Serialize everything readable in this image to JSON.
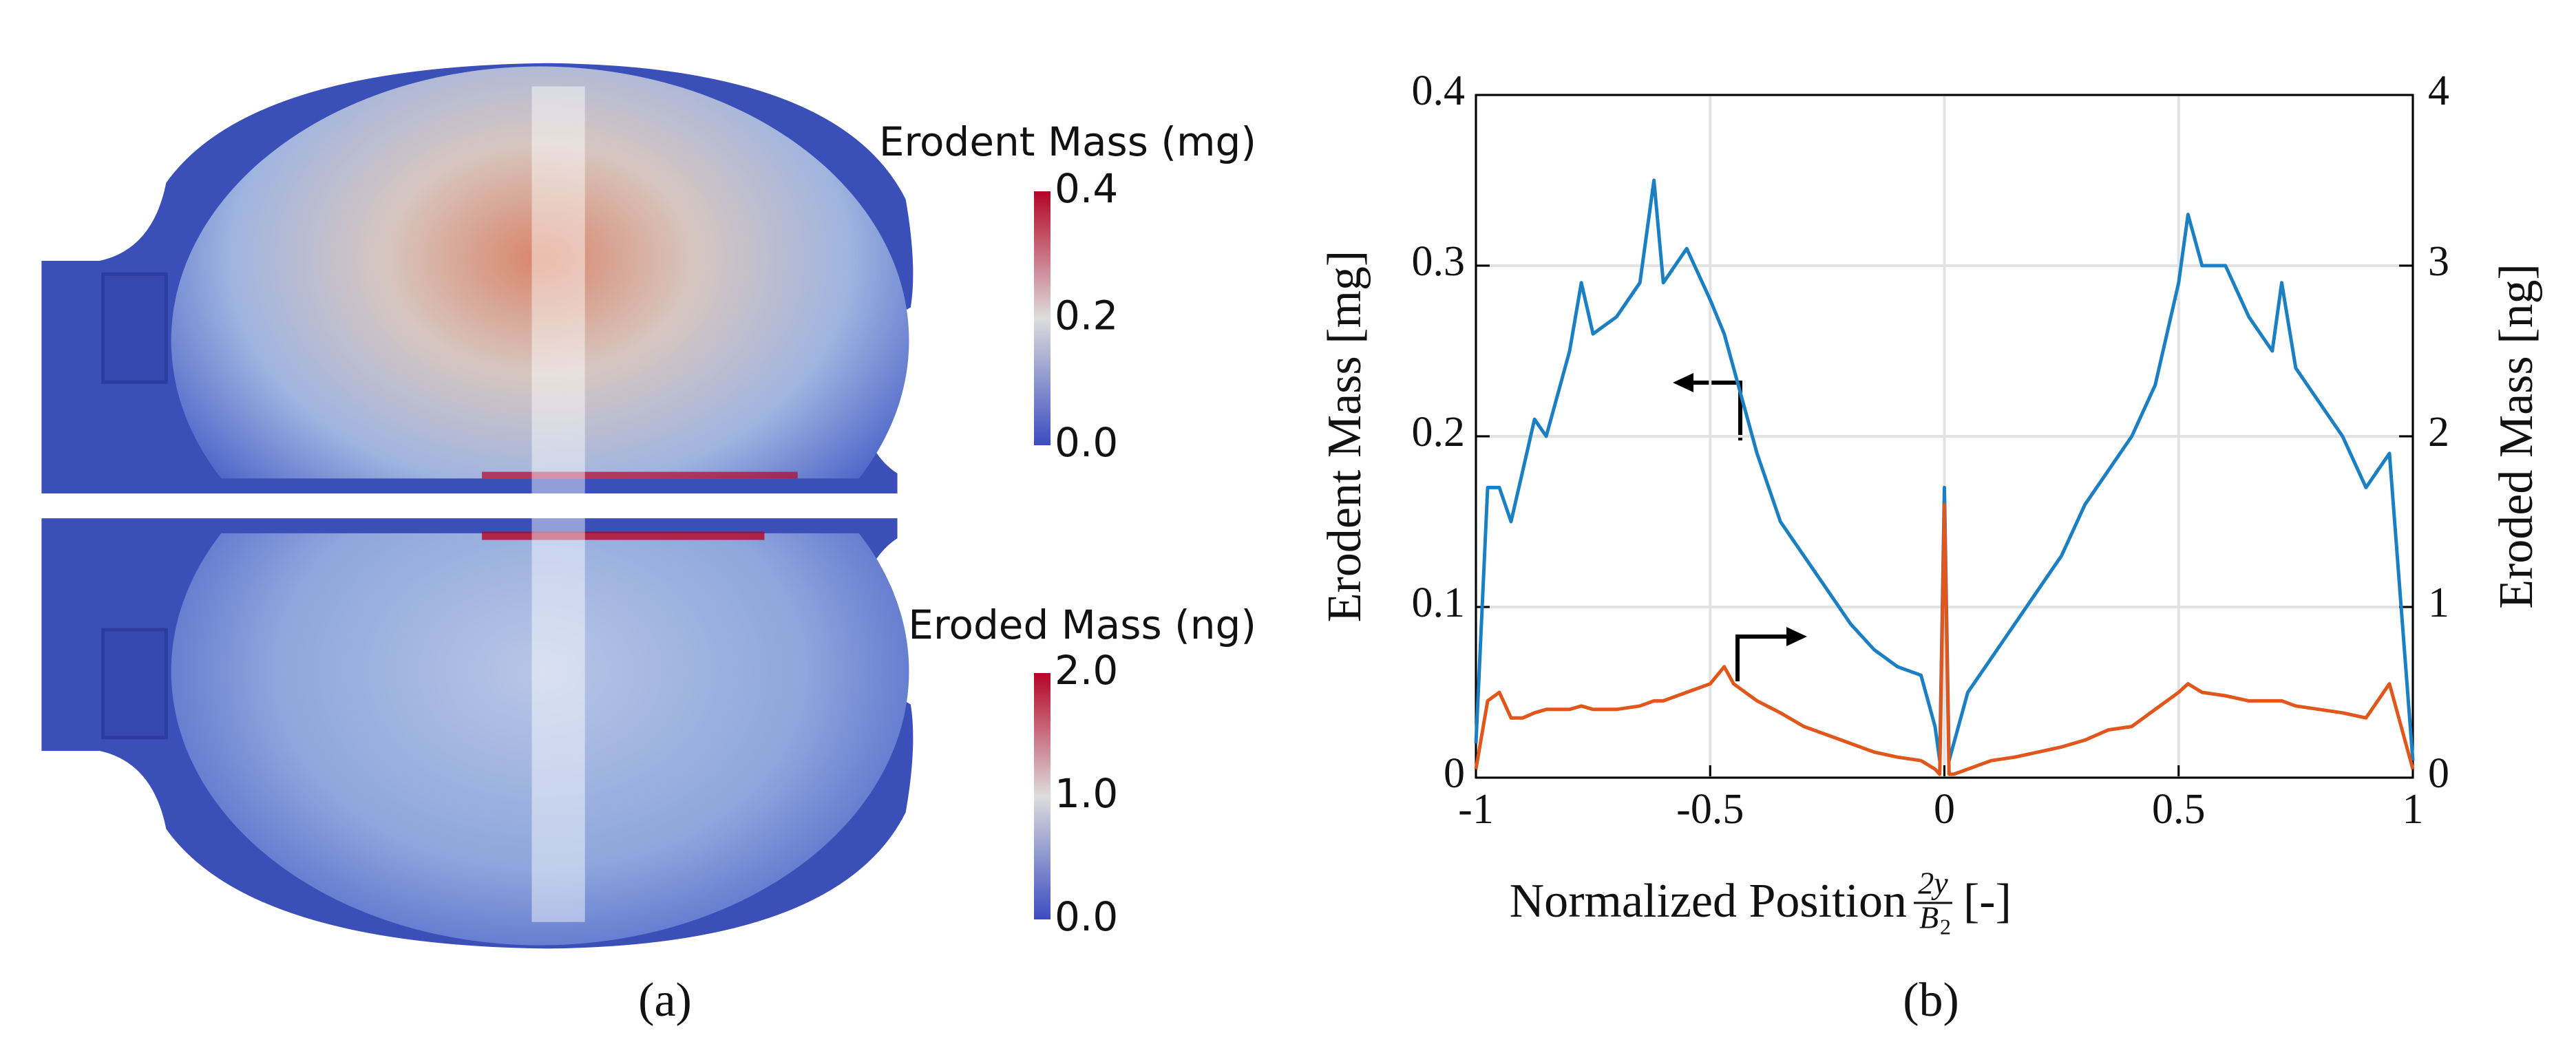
{
  "colorbars": [
    {
      "title": "Erodent Mass (mg)",
      "clim": [
        0,
        0.4
      ],
      "ticks": [
        0.4,
        0.2,
        {
          "value": 0,
          "label": "0.0"
        }
      ]
    },
    {
      "title": "Eroded Mass (ng)",
      "clim": [
        0,
        2
      ],
      "ticks": [
        {
          "value": 2,
          "label": "2.0"
        },
        {
          "value": 1,
          "label": "1.0"
        },
        {
          "value": 0,
          "label": "0.0"
        }
      ]
    }
  ],
  "panel_labels": [
    "(a)",
    "(b)"
  ],
  "chart_data": {
    "type": "line",
    "xlabel": {
      "text": "Normalized Position",
      "numerator": "2y",
      "denominator": "B",
      "denominator_subscript": "2",
      "unit": "[-]"
    },
    "ylabel": "Erodent Mass [mg]",
    "y2label": "Eroded Mass [ng]",
    "x": [
      -1,
      -0.975,
      -0.95,
      -0.925,
      -0.9,
      -0.875,
      -0.85,
      -0.8,
      -0.775,
      -0.75,
      -0.7,
      -0.65,
      -0.62,
      -0.6,
      -0.55,
      -0.5,
      -0.47,
      -0.45,
      -0.4,
      -0.35,
      -0.3,
      -0.25,
      -0.2,
      -0.15,
      -0.1,
      -0.05,
      -0.02,
      -0.01,
      0,
      0.01,
      0.02,
      0.05,
      0.1,
      0.15,
      0.2,
      0.25,
      0.3,
      0.35,
      0.4,
      0.45,
      0.5,
      0.52,
      0.55,
      0.6,
      0.65,
      0.7,
      0.72,
      0.75,
      0.8,
      0.85,
      0.9,
      0.95,
      0.975,
      1
    ],
    "series": [
      {
        "color": "#1b7fc4",
        "axis": "y",
        "values": [
          0.02,
          0.17,
          0.17,
          0.15,
          0.18,
          0.21,
          0.2,
          0.25,
          0.29,
          0.26,
          0.27,
          0.29,
          0.35,
          0.29,
          0.31,
          0.28,
          0.26,
          0.24,
          0.19,
          0.15,
          0.13,
          0.11,
          0.09,
          0.075,
          0.065,
          0.06,
          0.03,
          0.01,
          0.17,
          0.01,
          0.02,
          0.05,
          0.07,
          0.09,
          0.11,
          0.13,
          0.16,
          0.18,
          0.2,
          0.23,
          0.29,
          0.33,
          0.3,
          0.3,
          0.27,
          0.25,
          0.29,
          0.24,
          0.22,
          0.2,
          0.17,
          0.19,
          0.1,
          0.01
        ]
      },
      {
        "color": "#e0561b",
        "axis": "y2",
        "values": [
          0.05,
          0.45,
          0.5,
          0.35,
          0.35,
          0.38,
          0.4,
          0.4,
          0.42,
          0.4,
          0.4,
          0.42,
          0.45,
          0.45,
          0.5,
          0.55,
          0.65,
          0.55,
          0.45,
          0.38,
          0.3,
          0.25,
          0.2,
          0.15,
          0.12,
          0.1,
          0.05,
          0.02,
          1.6,
          0.02,
          0.02,
          0.05,
          0.1,
          0.12,
          0.15,
          0.18,
          0.22,
          0.28,
          0.3,
          0.4,
          0.5,
          0.55,
          0.5,
          0.48,
          0.45,
          0.45,
          0.45,
          0.42,
          0.4,
          0.38,
          0.35,
          0.55,
          0.3,
          0.05
        ]
      }
    ],
    "xlim": [
      -1,
      1
    ],
    "xticks": [
      -1,
      -0.5,
      0,
      0.5,
      1
    ],
    "ylim": [
      0,
      0.4
    ],
    "yticks": [
      0,
      0.1,
      0.2,
      0.3,
      0.4
    ],
    "y2lim": [
      0,
      4
    ],
    "y2ticks": [
      0,
      1,
      2,
      3,
      4
    ],
    "grid": true
  }
}
